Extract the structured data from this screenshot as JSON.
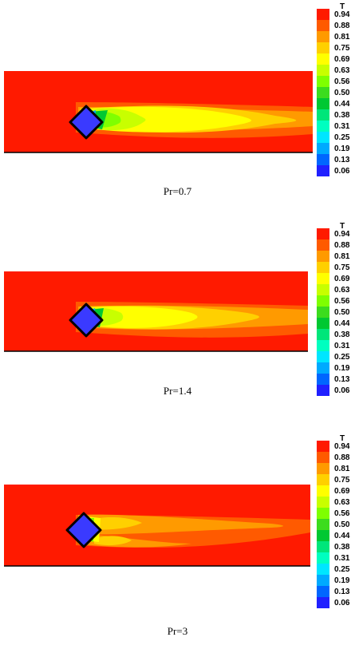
{
  "legend": {
    "title": "T",
    "levels": [
      {
        "label": "0.94",
        "color": "#ff1a00"
      },
      {
        "label": "0.88",
        "color": "#ff5a00"
      },
      {
        "label": "0.81",
        "color": "#ff9a00"
      },
      {
        "label": "0.75",
        "color": "#ffd000"
      },
      {
        "label": "0.69",
        "color": "#ffff00"
      },
      {
        "label": "0.63",
        "color": "#c8ff00"
      },
      {
        "label": "0.56",
        "color": "#7fff00"
      },
      {
        "label": "0.50",
        "color": "#3cdc1e"
      },
      {
        "label": "0.44",
        "color": "#00c832"
      },
      {
        "label": "0.38",
        "color": "#00e67a"
      },
      {
        "label": "0.31",
        "color": "#00ffc0"
      },
      {
        "label": "0.25",
        "color": "#00e6ff"
      },
      {
        "label": "0.19",
        "color": "#00aaff"
      },
      {
        "label": "0.13",
        "color": "#0066ff"
      },
      {
        "label": "0.06",
        "color": "#2020ff"
      }
    ]
  },
  "panels": [
    {
      "caption": "Pr=0.7"
    },
    {
      "caption": "Pr=1.4"
    },
    {
      "caption": "Pr=3"
    }
  ],
  "colors": {
    "background_field": "#ff1a00",
    "obstacle": "#3a3aff",
    "outline": "#000000"
  }
}
